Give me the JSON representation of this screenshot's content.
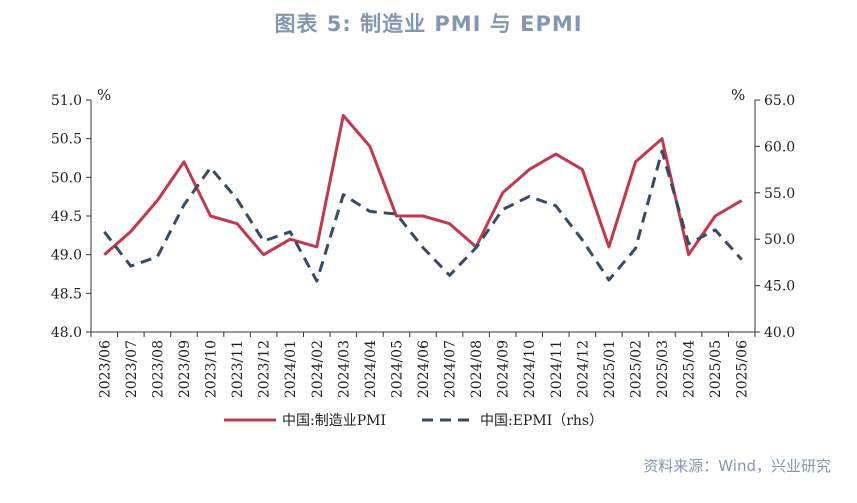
{
  "title": "图表 5:   制造业 PMI 与 EPMI",
  "source": "资料来源：Wind，兴业研究",
  "colors": {
    "series1": "#c0394f",
    "series2": "#3b4a63",
    "title": "#8497b0",
    "source": "#8497b0"
  },
  "chart_data": {
    "type": "line",
    "categories": [
      "2023/06",
      "2023/07",
      "2023/08",
      "2023/09",
      "2023/10",
      "2023/11",
      "2023/12",
      "2024/01",
      "2024/02",
      "2024/03",
      "2024/04",
      "2024/05",
      "2024/06",
      "2024/07",
      "2024/08",
      "2024/09",
      "2024/10",
      "2024/11",
      "2024/12",
      "2025/01",
      "2025/02",
      "2025/03",
      "2025/04",
      "2025/05",
      "2025/06"
    ],
    "y_unit": "%",
    "y2_unit": "%",
    "ylim": [
      48.0,
      51.0
    ],
    "y2lim": [
      40.0,
      65.0
    ],
    "yticks": [
      "48.0",
      "48.5",
      "49.0",
      "49.5",
      "50.0",
      "50.5",
      "51.0"
    ],
    "y2ticks": [
      "40.0",
      "45.0",
      "50.0",
      "55.0",
      "60.0",
      "65.0"
    ],
    "series": [
      {
        "name": "中国:制造业PMI",
        "axis": "left",
        "style": "solid",
        "values": [
          49.0,
          49.3,
          49.7,
          50.2,
          49.5,
          49.4,
          49.0,
          49.2,
          49.1,
          50.8,
          50.4,
          49.5,
          49.5,
          49.4,
          49.1,
          49.8,
          50.1,
          50.3,
          50.1,
          49.1,
          50.2,
          50.5,
          49.0,
          49.5,
          49.7
        ]
      },
      {
        "name": "中国:EPMI（rhs）",
        "axis": "right",
        "style": "dashed",
        "values": [
          50.8,
          47.1,
          48.1,
          53.7,
          57.7,
          54.3,
          49.8,
          50.8,
          45.5,
          54.8,
          53.0,
          52.7,
          49.1,
          46.1,
          49.1,
          53.2,
          54.6,
          53.6,
          49.9,
          45.6,
          49.0,
          59.5,
          49.5,
          51.0,
          47.8
        ]
      }
    ],
    "legend_position": "bottom",
    "grid": false
  }
}
